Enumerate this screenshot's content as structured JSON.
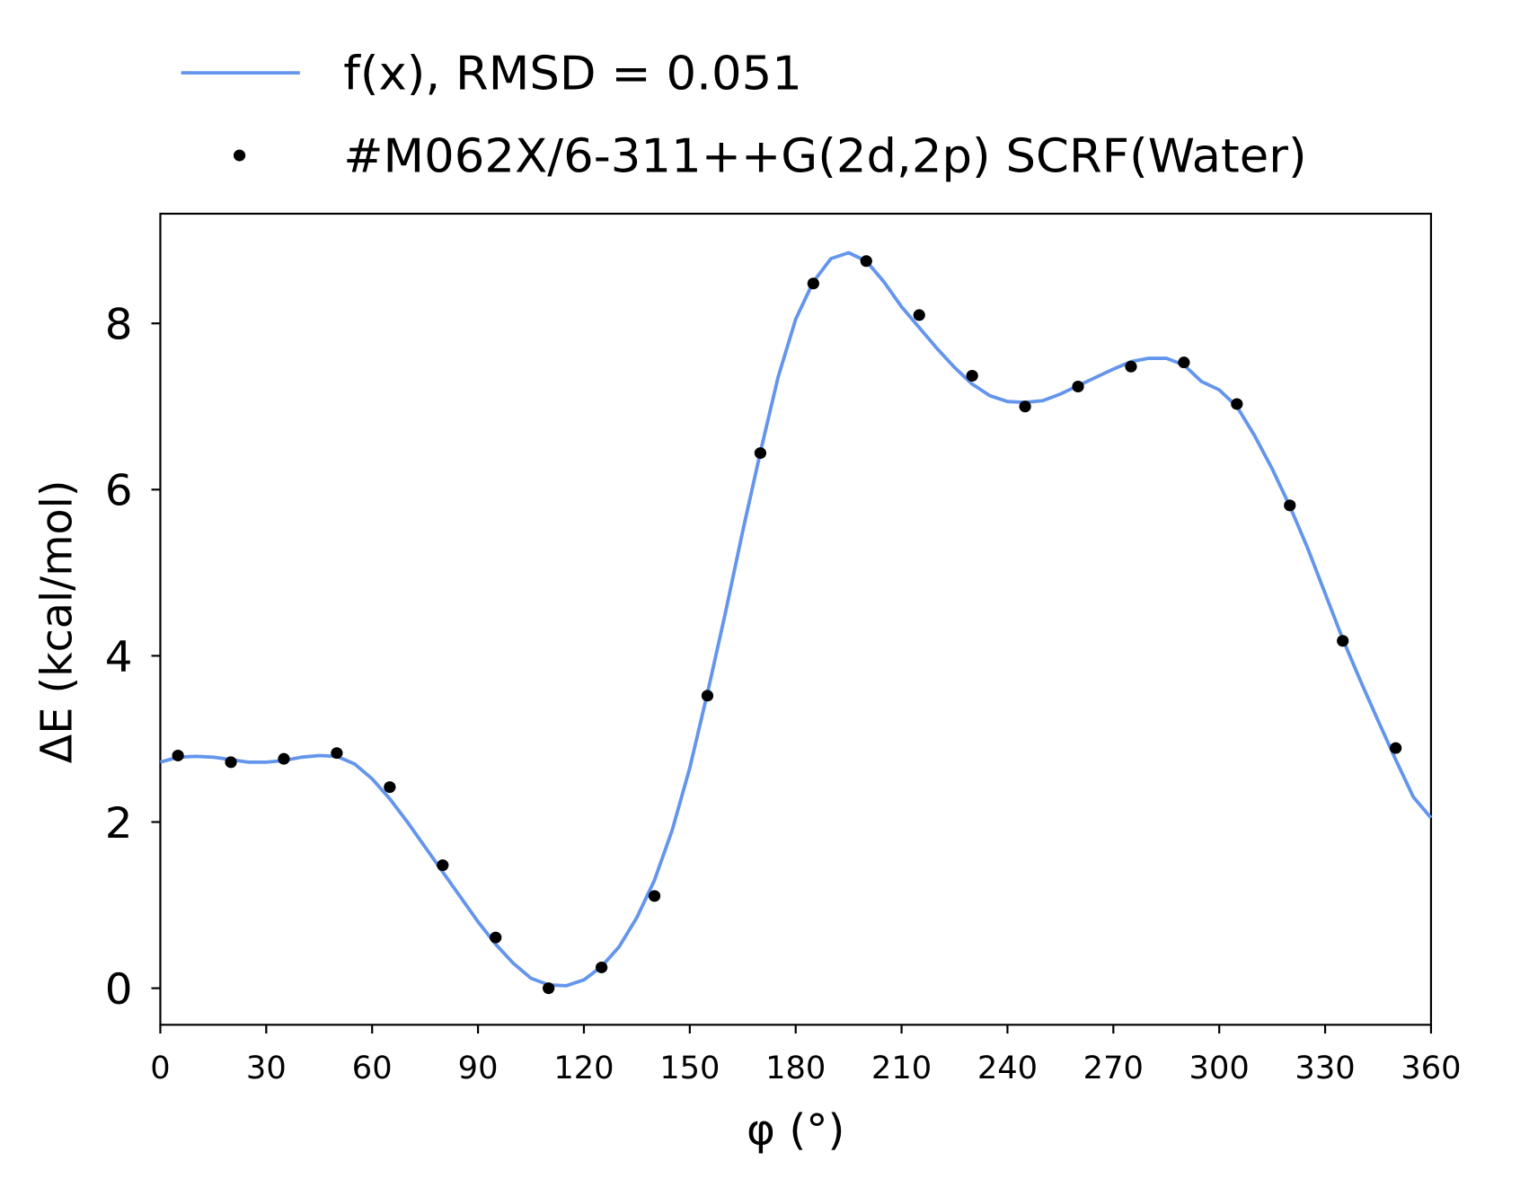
{
  "chart_data": {
    "type": "line",
    "xlabel": "φ (°)",
    "ylabel": "ΔE (kcal/mol)",
    "xlim": [
      0,
      360
    ],
    "ylim": [
      -0.44,
      9.32
    ],
    "xticks": [
      0,
      30,
      60,
      90,
      120,
      150,
      180,
      210,
      240,
      270,
      300,
      330,
      360
    ],
    "yticks": [
      0,
      2,
      4,
      6,
      8
    ],
    "grid": false,
    "legend": "top",
    "series": [
      {
        "name": "f(x), RMSD = 0.051",
        "color": "#6495ed",
        "mode": "line",
        "x": [
          0,
          5,
          10,
          15,
          20,
          25,
          30,
          35,
          40,
          45,
          50,
          55,
          60,
          65,
          70,
          75,
          80,
          85,
          90,
          95,
          100,
          105,
          110,
          115,
          120,
          125,
          130,
          135,
          140,
          145,
          150,
          155,
          160,
          165,
          170,
          175,
          180,
          185,
          190,
          195,
          200,
          205,
          210,
          215,
          220,
          225,
          230,
          235,
          240,
          245,
          250,
          255,
          260,
          265,
          270,
          275,
          280,
          285,
          290,
          295,
          300,
          305,
          310,
          315,
          320,
          325,
          330,
          335,
          340,
          345,
          350,
          355,
          360
        ],
        "values": [
          2.72,
          2.78,
          2.79,
          2.78,
          2.75,
          2.72,
          2.72,
          2.74,
          2.78,
          2.8,
          2.79,
          2.7,
          2.52,
          2.28,
          2.0,
          1.7,
          1.4,
          1.1,
          0.8,
          0.53,
          0.3,
          0.12,
          0.04,
          0.03,
          0.1,
          0.26,
          0.5,
          0.85,
          1.3,
          1.9,
          2.65,
          3.55,
          4.5,
          5.5,
          6.45,
          7.35,
          8.05,
          8.5,
          8.78,
          8.85,
          8.75,
          8.5,
          8.2,
          7.95,
          7.7,
          7.47,
          7.27,
          7.13,
          7.06,
          7.05,
          7.07,
          7.15,
          7.25,
          7.35,
          7.45,
          7.54,
          7.58,
          7.58,
          7.5,
          7.3,
          7.2,
          7.0,
          6.65,
          6.25,
          5.8,
          5.3,
          4.75,
          4.2,
          3.7,
          3.22,
          2.75,
          2.3,
          2.05
        ]
      },
      {
        "name": "#M062X/6-311++G(2d,2p) SCRF(Water)",
        "color": "#000000",
        "mode": "markers",
        "x": [
          5,
          20,
          35,
          50,
          65,
          80,
          95,
          110,
          125,
          140,
          155,
          170,
          185,
          200,
          215,
          230,
          245,
          260,
          275,
          290,
          305,
          320,
          335,
          350
        ],
        "values": [
          2.8,
          2.72,
          2.76,
          2.83,
          2.42,
          1.48,
          0.61,
          0.0,
          0.25,
          1.11,
          3.52,
          6.44,
          8.48,
          8.75,
          8.1,
          7.37,
          7.0,
          7.24,
          7.48,
          7.53,
          7.03,
          5.81,
          4.18,
          2.89
        ]
      }
    ]
  }
}
